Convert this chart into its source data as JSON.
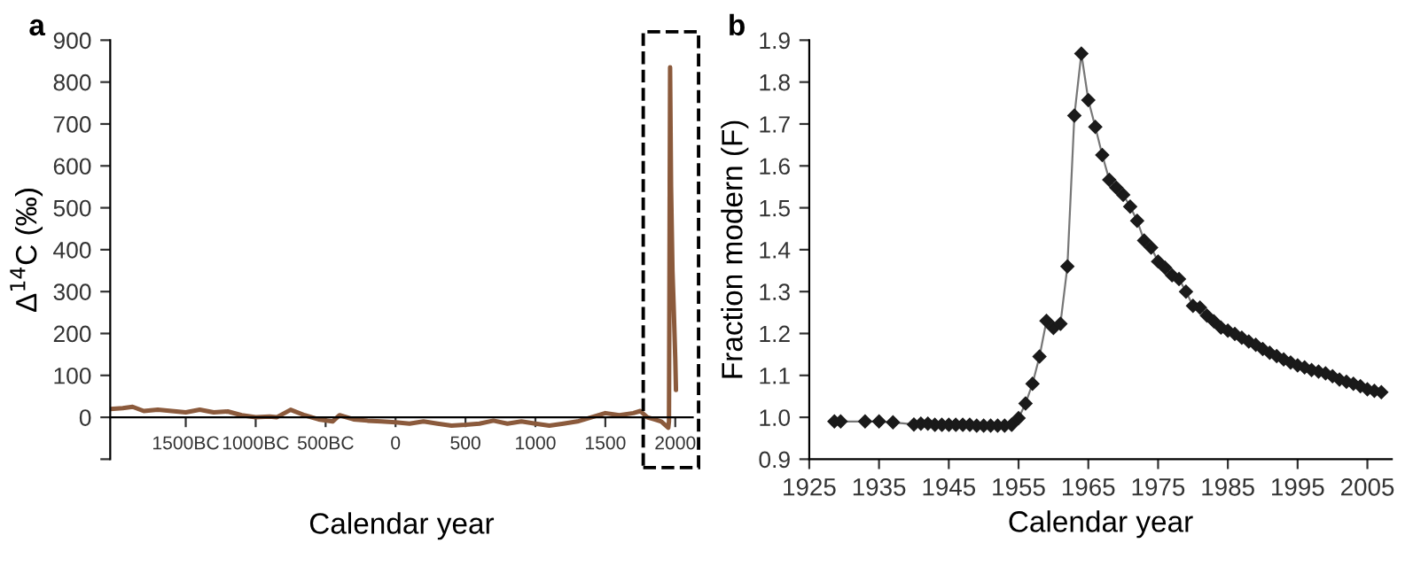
{
  "chart_data": [
    {
      "type": "line",
      "title": "a",
      "xlabel": "Calendar year",
      "ylabel": "Δ$^{14}$C (‰)",
      "xlim": [
        -2040,
        2125
      ],
      "ylim": [
        -100,
        900
      ],
      "xticks": [
        {
          "value": -1500,
          "label": "1500BC"
        },
        {
          "value": -1000,
          "label": "1000BC"
        },
        {
          "value": -500,
          "label": "500BC"
        },
        0,
        500,
        1000,
        1500,
        2000
      ],
      "yticks": [
        {
          "value": -100,
          "label": null
        },
        0,
        100,
        200,
        300,
        400,
        500,
        600,
        700,
        800,
        900
      ],
      "grid": false,
      "marker": "none",
      "line_style": "solid",
      "series": [
        {
          "color": "#8b5a3c",
          "x": [
            -2040,
            -1950,
            -1880,
            -1800,
            -1700,
            -1600,
            -1500,
            -1400,
            -1300,
            -1200,
            -1100,
            -1000,
            -900,
            -850,
            -750,
            -650,
            -550,
            -450,
            -400,
            -300,
            -200,
            -100,
            0,
            100,
            200,
            300,
            400,
            500,
            600,
            700,
            800,
            900,
            1000,
            1100,
            1200,
            1300,
            1400,
            1500,
            1600,
            1700,
            1750,
            1800,
            1850,
            1900,
            1950,
            1955,
            1963,
            1970,
            1980,
            1990,
            2000,
            2005
          ],
          "values": [
            20,
            22,
            25,
            15,
            18,
            15,
            12,
            18,
            12,
            14,
            5,
            0,
            2,
            0,
            18,
            5,
            -5,
            -10,
            5,
            -5,
            -8,
            -10,
            -12,
            -15,
            -10,
            -15,
            -20,
            -18,
            -15,
            -8,
            -15,
            -10,
            -15,
            -20,
            -15,
            -10,
            0,
            10,
            5,
            10,
            15,
            0,
            -5,
            -10,
            -25,
            -10,
            835,
            550,
            350,
            250,
            140,
            65
          ]
        }
      ]
    },
    {
      "type": "line",
      "title": "b",
      "xlabel": "Calendar year",
      "ylabel": "Fraction modern (F)",
      "xlim": [
        1925,
        2008.5
      ],
      "ylim": [
        0.9,
        1.9
      ],
      "xticks": [
        1925,
        1935,
        1945,
        1955,
        1965,
        1975,
        1985,
        1995,
        2005
      ],
      "yticks": [
        {
          "value": 0.9,
          "label": "0.9"
        },
        {
          "value": 1.0,
          "label": "1.0"
        },
        1.1,
        1.2,
        1.3,
        1.4,
        1.5,
        1.6,
        1.7,
        1.8,
        1.9
      ],
      "grid": false,
      "marker": "diamond",
      "line_style": "solid",
      "series": [
        {
          "color": "#1a1a1a",
          "x": [
            1928.6,
            1929.5,
            1933,
            1935,
            1937,
            1940,
            1941,
            1942,
            1943,
            1944,
            1945,
            1946,
            1947,
            1948,
            1949,
            1950,
            1951,
            1952,
            1953,
            1954,
            1955,
            1956,
            1957,
            1958,
            1959,
            1960,
            1961,
            1962,
            1963,
            1964,
            1965,
            1966,
            1967,
            1968,
            1969,
            1970,
            1971,
            1972,
            1973,
            1974,
            1975,
            1976,
            1977,
            1978,
            1979,
            1980,
            1981,
            1982,
            1983,
            1984,
            1985,
            1986,
            1987,
            1988,
            1989,
            1990,
            1991,
            1992,
            1993,
            1994,
            1995,
            1996,
            1997,
            1998,
            1999,
            2000,
            2001,
            2002,
            2003,
            2004,
            2005,
            2006,
            2007
          ],
          "values": [
            0.99,
            0.99,
            0.99,
            0.99,
            0.988,
            0.983,
            0.985,
            0.985,
            0.982,
            0.982,
            0.982,
            0.982,
            0.982,
            0.982,
            0.98,
            0.98,
            0.98,
            0.98,
            0.98,
            0.982,
            0.998,
            1.033,
            1.08,
            1.145,
            1.23,
            1.213,
            1.223,
            1.36,
            1.72,
            1.868,
            1.757,
            1.693,
            1.626,
            1.567,
            1.548,
            1.531,
            1.503,
            1.469,
            1.422,
            1.405,
            1.372,
            1.357,
            1.339,
            1.33,
            1.3,
            1.266,
            1.262,
            1.243,
            1.229,
            1.214,
            1.207,
            1.199,
            1.19,
            1.181,
            1.173,
            1.163,
            1.154,
            1.146,
            1.138,
            1.131,
            1.124,
            1.119,
            1.113,
            1.109,
            1.105,
            1.098,
            1.09,
            1.085,
            1.08,
            1.074,
            1.067,
            1.063,
            1.06
          ]
        }
      ]
    }
  ]
}
